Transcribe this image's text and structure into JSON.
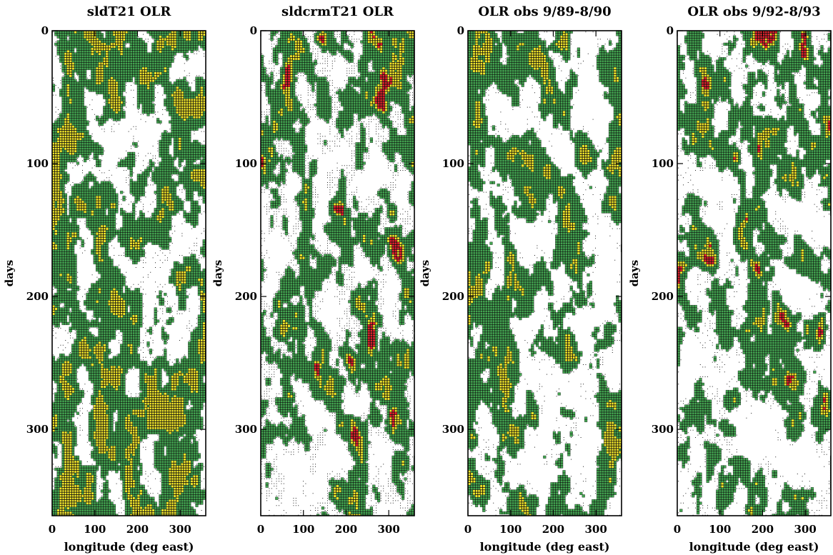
{
  "colors": {
    "green": "#43a651",
    "yellow": "#f5ea2b",
    "red": "#e6222d",
    "outline": "#111111",
    "dots": "#222222"
  },
  "chart_data": [
    {
      "type": "heatmap",
      "title": "sldT21 OLR",
      "xlabel": "longitude (deg east)",
      "ylabel": "days",
      "xlim": [
        0,
        360
      ],
      "ylim": [
        0,
        365
      ],
      "y_inverted": true,
      "xticks": [
        "0",
        "100",
        "200",
        "300"
      ],
      "yticks": [
        "0",
        "100",
        "200",
        "300"
      ],
      "levels_shown": [
        "green",
        "yellow"
      ],
      "intensity": 0.44,
      "stipple": 0.25,
      "propagation_slope": 0.0
    },
    {
      "type": "heatmap",
      "title": "sldcrmT21 OLR",
      "xlabel": "",
      "ylabel": "days",
      "xlim": [
        0,
        360
      ],
      "ylim": [
        0,
        365
      ],
      "y_inverted": true,
      "xticks": [
        "0",
        "100",
        "200",
        "300"
      ],
      "yticks": [
        "0",
        "100",
        "200",
        "300"
      ],
      "levels_shown": [
        "green",
        "yellow",
        "red"
      ],
      "intensity": 0.5,
      "stipple": 0.65,
      "propagation_slope": 0.9
    },
    {
      "type": "heatmap",
      "title": "OLR obs 9/89-8/90",
      "xlabel": "longitude (deg east)",
      "ylabel": "days",
      "xlim": [
        0,
        360
      ],
      "ylim": [
        0,
        365
      ],
      "y_inverted": true,
      "xticks": [
        "0",
        "100",
        "200",
        "300"
      ],
      "yticks": [
        "0",
        "100",
        "200",
        "300"
      ],
      "levels_shown": [
        "green",
        "yellow"
      ],
      "intensity": 0.5,
      "stipple": 0.2,
      "propagation_slope": 0.7
    },
    {
      "type": "heatmap",
      "title": "OLR obs 9/92-8/93",
      "xlabel": "longitude (deg east)",
      "ylabel": "days",
      "xlim": [
        0,
        360
      ],
      "ylim": [
        0,
        365
      ],
      "y_inverted": true,
      "xticks": [
        "0",
        "100",
        "200",
        "300"
      ],
      "yticks": [
        "0",
        "100",
        "200",
        "300"
      ],
      "levels_shown": [
        "green",
        "yellow",
        "red"
      ],
      "intensity": 0.52,
      "stipple": 0.3,
      "propagation_slope": 0.6
    }
  ]
}
